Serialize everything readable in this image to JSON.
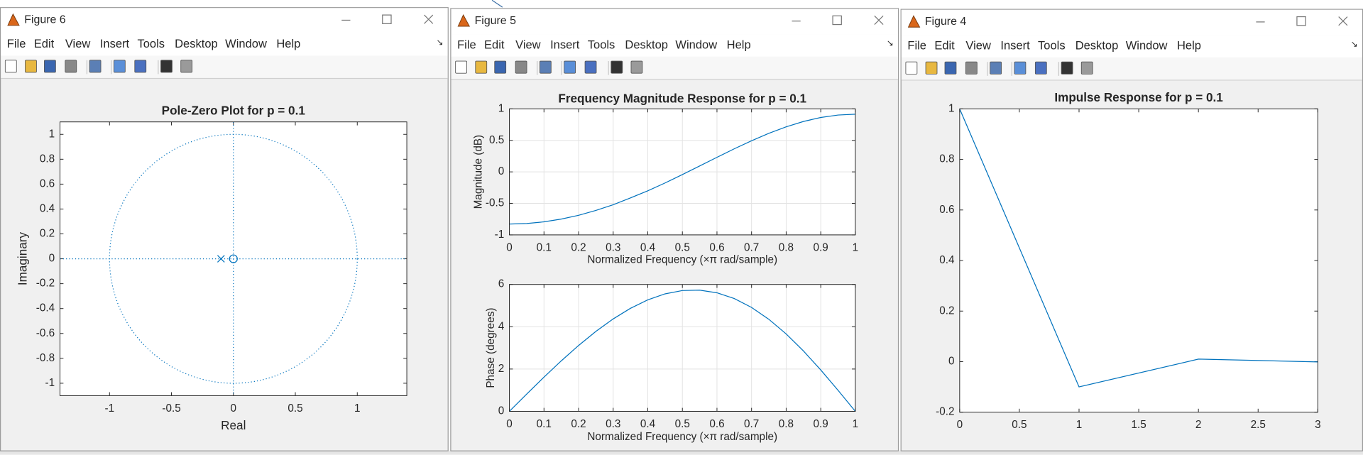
{
  "windows": [
    {
      "title": "Figure 6",
      "menu": [
        "File",
        "Edit",
        "View",
        "Insert",
        "Tools",
        "Desktop",
        "Window",
        "Help"
      ],
      "plots": [
        {
          "type": "pole_zero",
          "title": "Pole-Zero Plot for p = 0.1",
          "xlabel": "Real",
          "ylabel": "Imaginary",
          "xlim": [
            -1.4,
            1.4
          ],
          "ylim": [
            -1.1,
            1.1
          ],
          "xticks": [
            -1,
            -0.5,
            0,
            0.5,
            1
          ],
          "yticks": [
            -1,
            -0.8,
            -0.6,
            -0.4,
            -0.2,
            0,
            0.2,
            0.4,
            0.6,
            0.8,
            1
          ],
          "grid": false,
          "color": "#0072bd",
          "zeros": {
            "x": [
              0
            ],
            "y": [
              0
            ]
          },
          "poles": {
            "x": [
              -0.1
            ],
            "y": [
              0
            ]
          }
        }
      ]
    },
    {
      "title": "Figure 5",
      "menu": [
        "File",
        "Edit",
        "View",
        "Insert",
        "Tools",
        "Desktop",
        "Window",
        "Help"
      ],
      "plots": [
        {
          "type": "line",
          "title": "Frequency Magnitude Response for p = 0.1",
          "xlabel": "Normalized Frequency  (×π rad/sample)",
          "ylabel": "Magnitude (dB)",
          "xlim": [
            0,
            1
          ],
          "ylim": [
            -1,
            1
          ],
          "xticks": [
            0,
            0.1,
            0.2,
            0.3,
            0.4,
            0.5,
            0.6,
            0.7,
            0.8,
            0.9,
            1
          ],
          "yticks": [
            -1,
            -0.5,
            0,
            0.5,
            1
          ],
          "grid": true,
          "color": "#0072bd",
          "x": [
            0,
            0.05,
            0.1,
            0.15,
            0.2,
            0.25,
            0.3,
            0.35,
            0.4,
            0.45,
            0.5,
            0.55,
            0.6,
            0.65,
            0.7,
            0.75,
            0.8,
            0.85,
            0.9,
            0.95,
            1
          ],
          "values": [
            -0.828,
            -0.819,
            -0.793,
            -0.749,
            -0.689,
            -0.612,
            -0.522,
            -0.413,
            -0.301,
            -0.176,
            -0.043,
            0.094,
            0.231,
            0.366,
            0.494,
            0.612,
            0.715,
            0.8,
            0.863,
            0.902,
            0.915
          ]
        },
        {
          "type": "line",
          "xlabel": "Normalized Frequency  (×π rad/sample)",
          "ylabel": "Phase (degrees)",
          "xlim": [
            0,
            1
          ],
          "ylim": [
            0,
            6
          ],
          "xticks": [
            0,
            0.1,
            0.2,
            0.3,
            0.4,
            0.5,
            0.6,
            0.7,
            0.8,
            0.9,
            1
          ],
          "yticks": [
            0,
            2,
            4,
            6
          ],
          "grid": true,
          "color": "#0072bd",
          "x": [
            0,
            0.05,
            0.1,
            0.15,
            0.2,
            0.25,
            0.3,
            0.35,
            0.4,
            0.45,
            0.5,
            0.55,
            0.6,
            0.65,
            0.7,
            0.75,
            0.8,
            0.85,
            0.9,
            0.95,
            1
          ],
          "values": [
            0,
            0.816,
            1.617,
            2.387,
            3.113,
            3.779,
            4.369,
            4.871,
            5.271,
            5.555,
            5.711,
            5.73,
            5.605,
            5.332,
            4.912,
            4.351,
            3.659,
            2.853,
            1.956,
            0.994,
            0
          ]
        }
      ]
    },
    {
      "title": "Figure 4",
      "menu": [
        "File",
        "Edit",
        "View",
        "Insert",
        "Tools",
        "Desktop",
        "Window",
        "Help"
      ],
      "plots": [
        {
          "type": "line",
          "title": "Impulse Response for p = 0.1",
          "xlim": [
            0,
            3
          ],
          "ylim": [
            -0.2,
            1
          ],
          "xticks": [
            0,
            0.5,
            1,
            1.5,
            2,
            2.5,
            3
          ],
          "yticks": [
            -0.2,
            0,
            0.2,
            0.4,
            0.6,
            0.8,
            1
          ],
          "grid": false,
          "color": "#0072bd",
          "x": [
            0,
            1,
            2,
            3
          ],
          "values": [
            1,
            -0.1,
            0.01,
            -0.001
          ]
        }
      ]
    }
  ]
}
